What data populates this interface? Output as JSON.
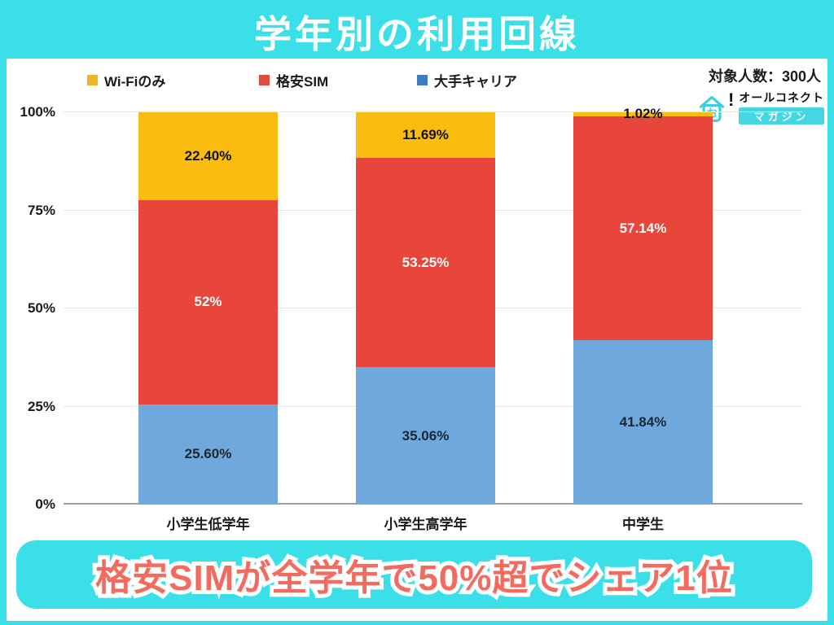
{
  "page": {
    "title": "学年別の利用回線",
    "sample_note": "対象人数：300人",
    "banner_text": "格安SIMが全学年で50%超でシェア1位",
    "colors": {
      "background": "#3BDFE8",
      "panel": "#FFFFFF",
      "title_text": "#FFFFFF",
      "banner_fill": "#3BDFE8",
      "banner_text": "#F26B5E",
      "banner_text_outline": "#FFFFFF",
      "gridline": "#E7E7E7",
      "axis_line": "#9AA0A6"
    }
  },
  "brand": {
    "name": "オールコネクト",
    "sub": "マガジン",
    "icon": "house-o-icon",
    "accent": "#45D6E2",
    "icon_letter": "お",
    "bang": "!"
  },
  "legend": {
    "items": [
      {
        "label": "Wi-Fiのみ",
        "color": "#F0B42A"
      },
      {
        "label": "格安SIM",
        "color": "#DF4B3C"
      },
      {
        "label": "大手キャリア",
        "color": "#3F7CBF"
      }
    ]
  },
  "chart_data": {
    "type": "bar",
    "stacked": true,
    "title": "学年別の利用回線",
    "categories": [
      "小学生低学年",
      "小学生高学年",
      "中学生"
    ],
    "series": [
      {
        "name": "大手キャリア",
        "color": "#6FA8DC",
        "label_color": "#1C2733",
        "values": [
          25.6,
          35.06,
          41.84
        ],
        "labels": [
          "25.60%",
          "35.06%",
          "41.84%"
        ]
      },
      {
        "name": "格安SIM",
        "color": "#E8463A",
        "label_color": "#FFFFFF",
        "values": [
          52,
          53.25,
          57.14
        ],
        "labels": [
          "52%",
          "53.25%",
          "57.14%"
        ]
      },
      {
        "name": "Wi-Fiのみ",
        "color": "#FBBC10",
        "label_color": "#111111",
        "values": [
          22.4,
          11.69,
          1.02
        ],
        "labels": [
          "22.40%",
          "11.69%",
          "1.02%"
        ]
      }
    ],
    "yticks": [
      "0%",
      "25%",
      "50%",
      "75%",
      "100%"
    ],
    "ylim": [
      0,
      100
    ],
    "grid": true,
    "legend_position": "top"
  }
}
